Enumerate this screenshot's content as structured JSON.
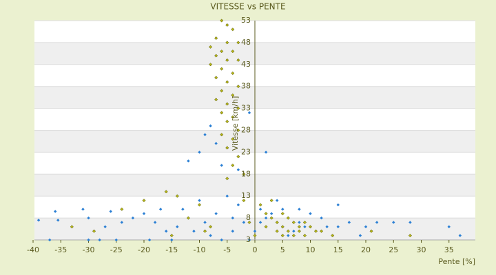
{
  "chart_data": {
    "type": "scatter",
    "title": "VITESSE vs PENTE",
    "x_label": "Pente [%]",
    "y_label": "Vitesse [km/h]",
    "xlim": [
      -40,
      40
    ],
    "xticks": [
      -40,
      -35,
      -30,
      -25,
      -20,
      -15,
      -10,
      -5,
      0,
      5,
      10,
      15,
      20,
      25,
      30,
      35
    ],
    "ylim": [
      3,
      53
    ],
    "yticks": [
      3,
      8,
      13,
      18,
      23,
      28,
      33,
      38,
      43,
      48,
      53
    ],
    "grid": true,
    "series": [
      {
        "color": "#2a7fd4",
        "x": [
          -39,
          -36,
          -35.5,
          -37,
          -31,
          -30,
          -30,
          -28,
          -26,
          -25,
          -24,
          -22,
          -20,
          -19,
          -18,
          -16,
          -15,
          -14,
          -13,
          -12,
          -12,
          -11,
          -10,
          -10,
          -9,
          -9,
          -8,
          -8,
          -7,
          -7,
          -6,
          -6,
          -5,
          -5,
          -4,
          -4,
          -3,
          -3,
          -2,
          -1,
          -1,
          0,
          1,
          1,
          2,
          2,
          3,
          4,
          5,
          5,
          6,
          7,
          8,
          9,
          10,
          11,
          12,
          13,
          15,
          15,
          17,
          19,
          20,
          22,
          25,
          28,
          35,
          37,
          -27,
          -17,
          -14,
          6,
          4,
          8
        ],
        "values": [
          7.5,
          9.5,
          7.5,
          3,
          10,
          8,
          3,
          3,
          9.5,
          3,
          7,
          8,
          9,
          3,
          7,
          5,
          3,
          6,
          10,
          21,
          8,
          5,
          23,
          12,
          27,
          7,
          29,
          4,
          25,
          9,
          20,
          3,
          13,
          24,
          8,
          5,
          19,
          11,
          7,
          32,
          3,
          5,
          10,
          7,
          23,
          8,
          9,
          7,
          6,
          10,
          8,
          5,
          7,
          6,
          9,
          5,
          8,
          6,
          11,
          6,
          7,
          4,
          6,
          7,
          7,
          7,
          6,
          4,
          6,
          10,
          13,
          4,
          12,
          10
        ]
      },
      {
        "color": "#b5b51a",
        "x": [
          -6,
          -5,
          -4,
          -7,
          -5,
          -3,
          -8,
          -6,
          -4,
          -7,
          -5,
          -3,
          -8,
          -6,
          -4,
          -7,
          -5,
          -3,
          -6,
          -4,
          -7,
          -5,
          -3,
          -6,
          -4,
          -5,
          -3,
          -6,
          -4,
          -5,
          -3,
          -4,
          -2,
          -5,
          -16,
          -14,
          -20,
          -10,
          -24,
          -33,
          -29,
          -12,
          -8,
          -2,
          1,
          2,
          2,
          3,
          3,
          4,
          4,
          5,
          5,
          5,
          6,
          6,
          7,
          7,
          8,
          8,
          9,
          9,
          10,
          11,
          12,
          14,
          -1,
          0,
          21,
          28,
          -15,
          -9
        ],
        "values": [
          53,
          52,
          51,
          49,
          48,
          48,
          47,
          46,
          46,
          45,
          44,
          44,
          43,
          42,
          41,
          40,
          39,
          38,
          37,
          36,
          35,
          34,
          33,
          32,
          31,
          30,
          28,
          27,
          26,
          24,
          22,
          20,
          18,
          17,
          14,
          13,
          12,
          11,
          10,
          6,
          5,
          8,
          6,
          12,
          11,
          9,
          6,
          8,
          12,
          7,
          5,
          9,
          6,
          4,
          8,
          5,
          7,
          4,
          6,
          5,
          7,
          4,
          6,
          5,
          5,
          4,
          7,
          4,
          5,
          4,
          4,
          5
        ]
      }
    ]
  }
}
